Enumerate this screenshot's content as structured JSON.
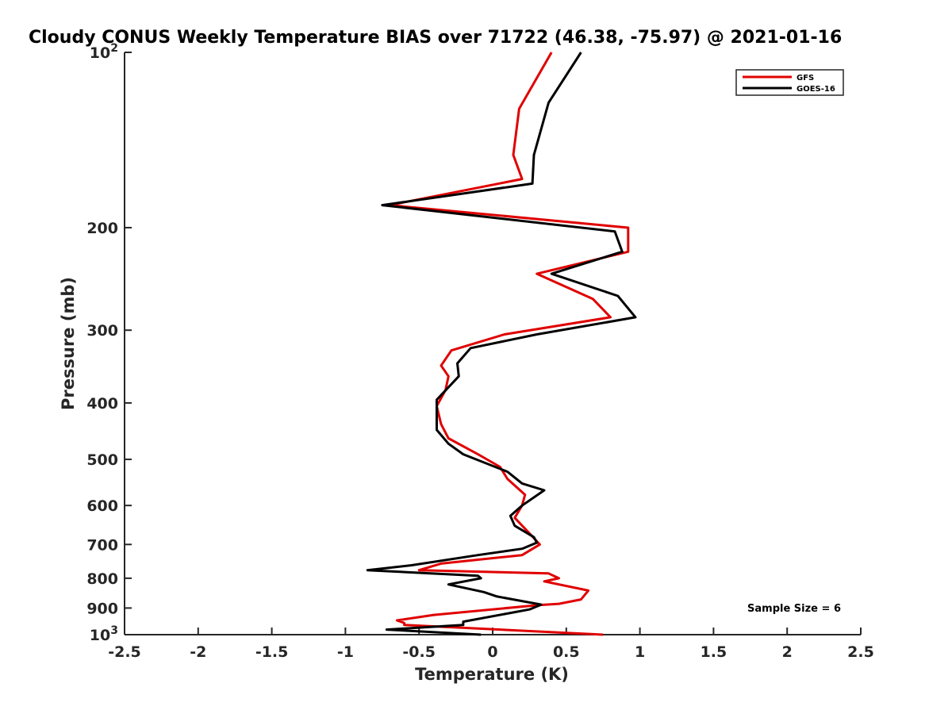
{
  "chart_data": {
    "type": "line",
    "title": "Cloudy CONUS Weekly Temperature BIAS over 71722 (46.38, -75.97) @ 2021-01-16",
    "xlabel": "Temperature (K)",
    "ylabel": "Pressure (mb)",
    "xlim": [
      -2.5,
      2.5
    ],
    "ylim": [
      100,
      1000
    ],
    "y_scale": "log",
    "y_reversed": true,
    "x_ticks": [
      -2.5,
      -2,
      -1.5,
      -1,
      -0.5,
      0,
      0.5,
      1,
      1.5,
      2,
      2.5
    ],
    "x_tick_labels": [
      "-2.5",
      "-2",
      "-1.5",
      "-1",
      "-0.5",
      "0",
      "0.5",
      "1",
      "1.5",
      "2",
      "2.5"
    ],
    "y_ticks": [
      100,
      200,
      300,
      400,
      500,
      600,
      700,
      800,
      900,
      1000
    ],
    "y_tick_labels": [
      {
        "base": "10",
        "exp": "2"
      },
      {
        "base": "200",
        "exp": ""
      },
      {
        "base": "300",
        "exp": ""
      },
      {
        "base": "400",
        "exp": ""
      },
      {
        "base": "500",
        "exp": ""
      },
      {
        "base": "600",
        "exp": ""
      },
      {
        "base": "700",
        "exp": ""
      },
      {
        "base": "800",
        "exp": ""
      },
      {
        "base": "900",
        "exp": ""
      },
      {
        "base": "10",
        "exp": "3"
      }
    ],
    "legend_position": "top-right",
    "annotation": "Sample Size = 6",
    "series": [
      {
        "name": "GFS",
        "color": "#e00000",
        "points": [
          [
            0.4,
            100
          ],
          [
            0.18,
            125
          ],
          [
            0.14,
            150
          ],
          [
            0.2,
            165
          ],
          [
            -0.7,
            183
          ],
          [
            0.92,
            200
          ],
          [
            0.92,
            220
          ],
          [
            0.3,
            240
          ],
          [
            0.68,
            265
          ],
          [
            0.8,
            285
          ],
          [
            0.08,
            305
          ],
          [
            -0.28,
            325
          ],
          [
            -0.35,
            345
          ],
          [
            -0.3,
            360
          ],
          [
            -0.32,
            380
          ],
          [
            -0.38,
            405
          ],
          [
            -0.35,
            435
          ],
          [
            -0.3,
            460
          ],
          [
            -0.1,
            490
          ],
          [
            0.05,
            515
          ],
          [
            0.1,
            540
          ],
          [
            0.22,
            575
          ],
          [
            0.2,
            600
          ],
          [
            0.15,
            630
          ],
          [
            0.25,
            670
          ],
          [
            0.32,
            700
          ],
          [
            0.2,
            730
          ],
          [
            -0.35,
            755
          ],
          [
            -0.5,
            775
          ],
          [
            0.38,
            785
          ],
          [
            0.45,
            800
          ],
          [
            0.35,
            810
          ],
          [
            0.65,
            840
          ],
          [
            0.6,
            870
          ],
          [
            0.45,
            885
          ],
          [
            0.3,
            890
          ],
          [
            -0.4,
            925
          ],
          [
            -0.65,
            945
          ],
          [
            -0.6,
            955
          ],
          [
            -0.6,
            962
          ],
          [
            0.75,
            1000
          ]
        ]
      },
      {
        "name": "GOES-16",
        "color": "#000000",
        "points": [
          [
            0.6,
            100
          ],
          [
            0.38,
            122
          ],
          [
            0.28,
            150
          ],
          [
            0.27,
            168
          ],
          [
            -0.75,
            183
          ],
          [
            0.83,
            203
          ],
          [
            0.88,
            220
          ],
          [
            0.4,
            240
          ],
          [
            0.85,
            262
          ],
          [
            0.97,
            285
          ],
          [
            0.3,
            305
          ],
          [
            -0.15,
            322
          ],
          [
            -0.24,
            342
          ],
          [
            -0.23,
            360
          ],
          [
            -0.38,
            395
          ],
          [
            -0.38,
            445
          ],
          [
            -0.3,
            470
          ],
          [
            -0.2,
            490
          ],
          [
            0.1,
            525
          ],
          [
            0.2,
            550
          ],
          [
            0.35,
            565
          ],
          [
            0.2,
            600
          ],
          [
            0.12,
            625
          ],
          [
            0.15,
            650
          ],
          [
            0.28,
            680
          ],
          [
            0.3,
            695
          ],
          [
            0.2,
            712
          ],
          [
            -0.1,
            730
          ],
          [
            -0.55,
            760
          ],
          [
            -0.85,
            775
          ],
          [
            -0.1,
            792
          ],
          [
            -0.08,
            800
          ],
          [
            -0.3,
            820
          ],
          [
            -0.06,
            845
          ],
          [
            0.03,
            860
          ],
          [
            0.33,
            888
          ],
          [
            0.25,
            905
          ],
          [
            -0.2,
            950
          ],
          [
            -0.2,
            962
          ],
          [
            -0.72,
            980
          ],
          [
            -0.08,
            1000
          ]
        ]
      }
    ]
  }
}
